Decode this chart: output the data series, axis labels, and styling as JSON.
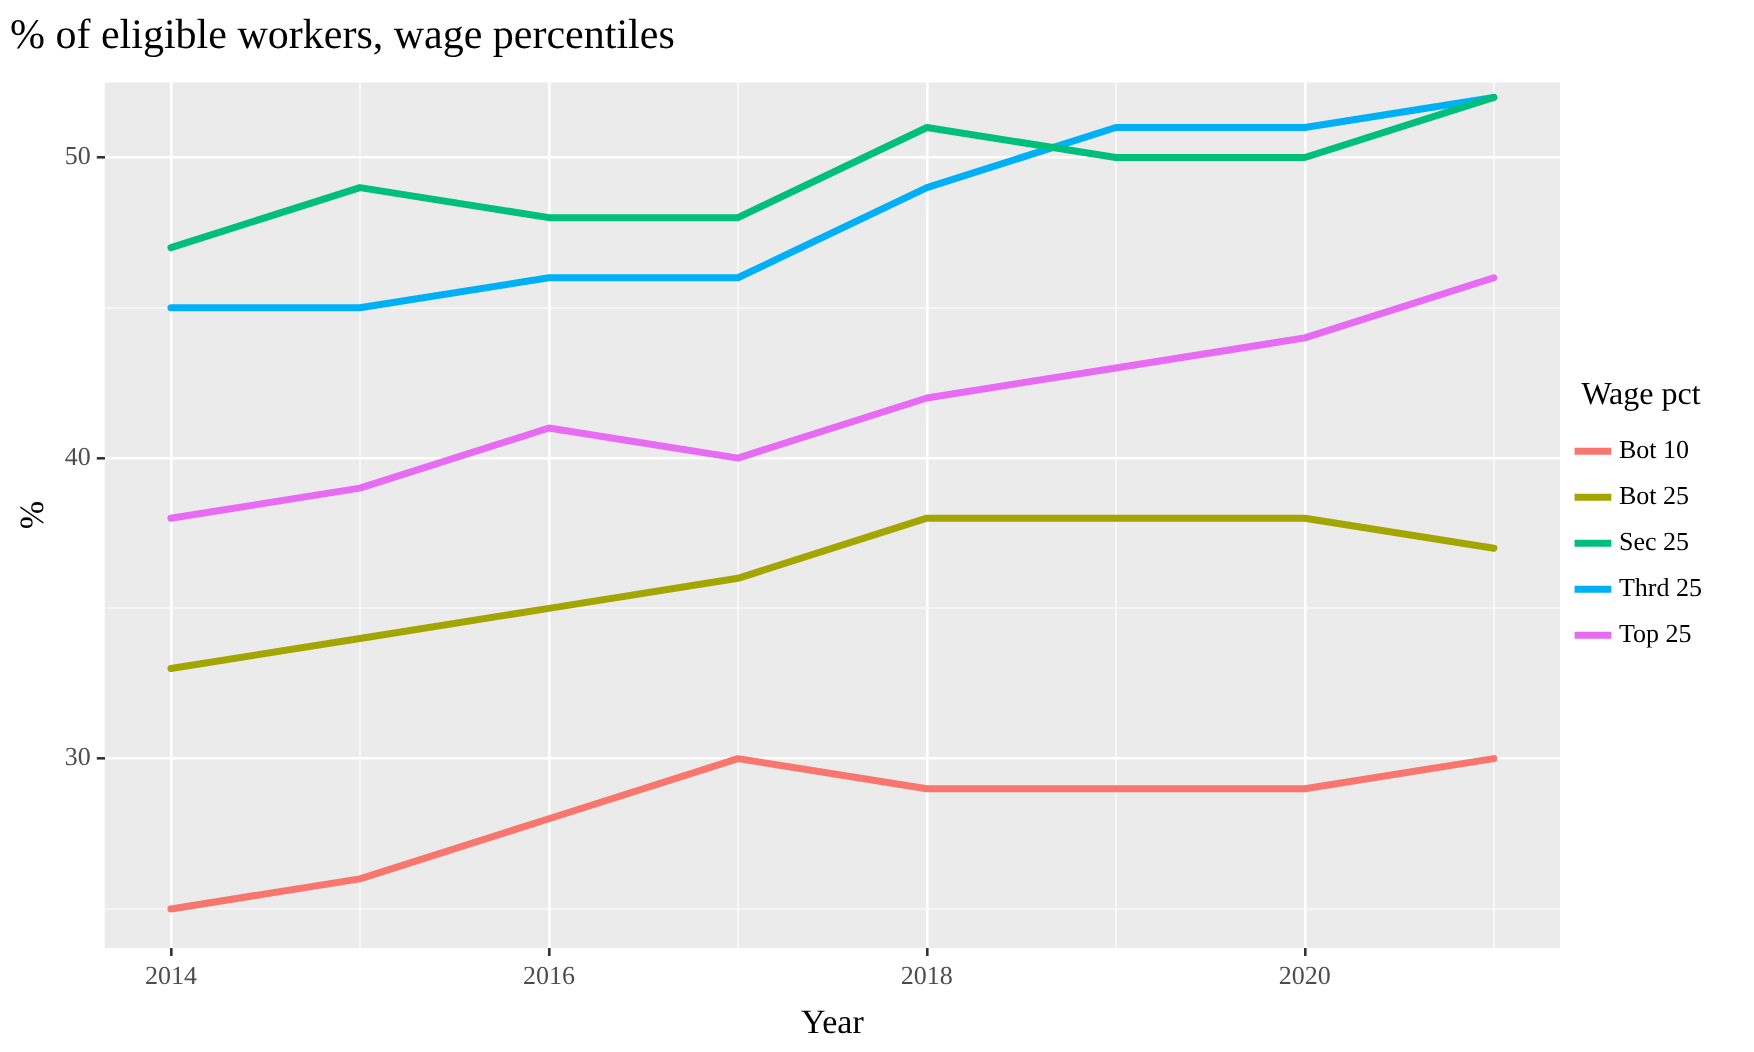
{
  "chart_data": {
    "type": "line",
    "title": "% of eligible workers, wage percentiles",
    "xlabel": "Year",
    "ylabel": "%",
    "legend_title": "Wage pct",
    "x": [
      2014,
      2015,
      2016,
      2017,
      2018,
      2019,
      2020,
      2021
    ],
    "series": [
      {
        "name": "Bot 10",
        "color": "#f8766d",
        "values": [
          25,
          26,
          28,
          30,
          29,
          29,
          29,
          30
        ]
      },
      {
        "name": "Bot 25",
        "color": "#a3a500",
        "values": [
          33,
          34,
          35,
          36,
          38,
          38,
          38,
          37
        ]
      },
      {
        "name": "Sec 25",
        "color": "#00bf7d",
        "values": [
          47,
          49,
          48,
          48,
          51,
          50,
          50,
          52
        ]
      },
      {
        "name": "Thrd 25",
        "color": "#00b0f6",
        "values": [
          45,
          45,
          46,
          46,
          49,
          51,
          51,
          52
        ]
      },
      {
        "name": "Top 25",
        "color": "#e76bf3",
        "values": [
          38,
          39,
          41,
          40,
          42,
          43,
          44,
          46
        ]
      }
    ],
    "xlim": [
      2013.65,
      2021.35
    ],
    "ylim": [
      23.7,
      52.5
    ],
    "xticks": [
      2014,
      {
        "value": 2015,
        "label": null
      },
      2016,
      {
        "value": 2017,
        "label": null
      },
      2018,
      {
        "value": 2019,
        "label": null
      },
      2020,
      {
        "value": 2021,
        "label": null
      }
    ],
    "yticks": [
      {
        "value": 25,
        "label": null
      },
      30,
      {
        "value": 35,
        "label": null
      },
      40,
      {
        "value": 45,
        "label": null
      },
      50
    ],
    "grid": true,
    "legend": "right",
    "marker": "none",
    "line_style": "solid"
  }
}
